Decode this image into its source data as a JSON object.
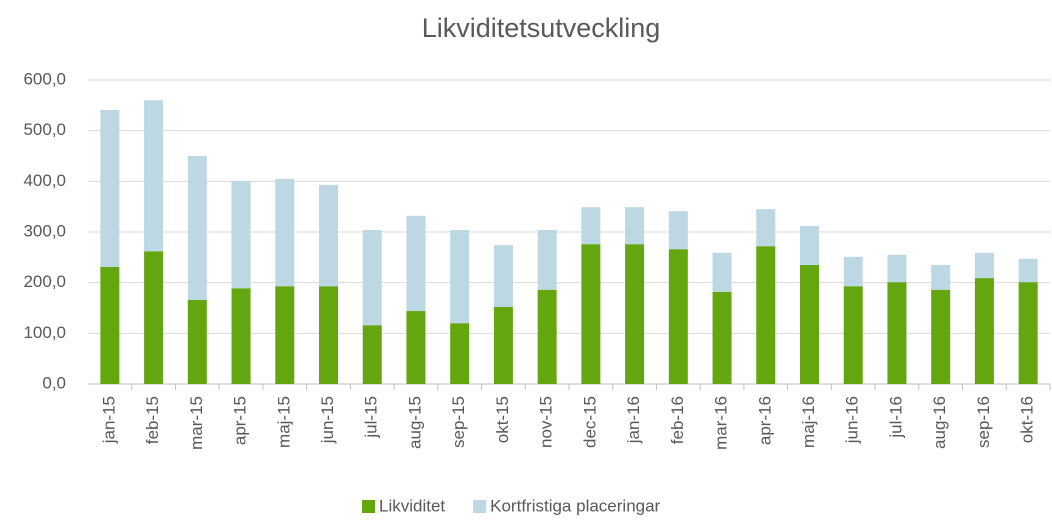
{
  "chart_data": {
    "type": "stacked_bar",
    "title": "Likviditetsutveckling",
    "categories": [
      "jan-15",
      "feb-15",
      "mar-15",
      "apr-15",
      "maj-15",
      "jun-15",
      "jul-15",
      "aug-15",
      "sep-15",
      "okt-15",
      "nov-15",
      "dec-15",
      "jan-16",
      "feb-16",
      "mar-16",
      "apr-16",
      "maj-16",
      "jun-16",
      "jul-16",
      "aug-16",
      "sep-16",
      "okt-16"
    ],
    "series": [
      {
        "name": "Likviditet",
        "color": "#63a60f",
        "values": [
          231,
          262,
          166,
          189,
          193,
          193,
          116,
          144,
          120,
          152,
          186,
          276,
          276,
          266,
          182,
          272,
          235,
          193,
          201,
          186,
          209,
          201
        ]
      },
      {
        "name": "Kortfristiga placeringar",
        "color": "#bdd7e3",
        "values": [
          310,
          298,
          284,
          211,
          212,
          200,
          188,
          188,
          184,
          122,
          118,
          73,
          73,
          75,
          77,
          73,
          77,
          58,
          54,
          49,
          50,
          46
        ]
      }
    ],
    "ylim": [
      0,
      600
    ],
    "yticks": [
      {
        "value": 0,
        "label": "0,0"
      },
      {
        "value": 100,
        "label": "100,0"
      },
      {
        "value": 200,
        "label": "200,0"
      },
      {
        "value": 300,
        "label": "300,0"
      },
      {
        "value": 400,
        "label": "400,0"
      },
      {
        "value": 500,
        "label": "500,0"
      },
      {
        "value": 600,
        "label": "600,0"
      }
    ],
    "grid": true,
    "legend": "bottom"
  }
}
